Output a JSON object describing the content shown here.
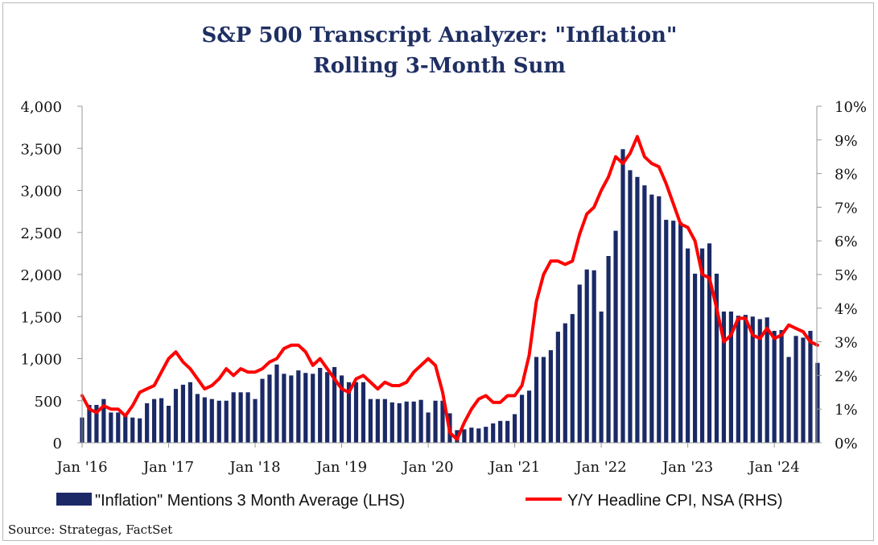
{
  "chart_data": {
    "type": "bar+line",
    "title_line1": "S&P 500 Transcript Analyzer: \"Inflation\"",
    "title_line2": "Rolling 3-Month Sum",
    "source": "Source: Strategas, FactSet",
    "colors": {
      "bars": "#1b2a66",
      "line": "#ff0000",
      "title": "#1f2f63"
    },
    "x_tick_labels": [
      "Jan '16",
      "Jan '17",
      "Jan '18",
      "Jan '19",
      "Jan '20",
      "Jan '21",
      "Jan '22",
      "Jan '23",
      "Jan '24"
    ],
    "left_axis": {
      "range": [
        0,
        4000
      ],
      "ticks": [
        "0",
        "500",
        "1,000",
        "1,500",
        "2,000",
        "2,500",
        "3,000",
        "3,500",
        "4,000"
      ]
    },
    "right_axis": {
      "range": [
        0,
        10
      ],
      "ticks": [
        "0%",
        "1%",
        "2%",
        "3%",
        "4%",
        "5%",
        "6%",
        "7%",
        "8%",
        "9%",
        "10%"
      ]
    },
    "start_month": "2016-01",
    "series": [
      {
        "name": "\"Inflation\" Mentions 3 Month Average (LHS)",
        "axis": "left",
        "kind": "bar",
        "values": [
          300,
          450,
          450,
          520,
          360,
          360,
          330,
          300,
          290,
          470,
          520,
          530,
          440,
          640,
          690,
          720,
          580,
          540,
          520,
          500,
          500,
          600,
          600,
          600,
          520,
          760,
          810,
          930,
          820,
          800,
          860,
          830,
          820,
          890,
          840,
          900,
          800,
          720,
          720,
          720,
          520,
          520,
          520,
          480,
          470,
          490,
          490,
          510,
          360,
          500,
          500,
          350,
          150,
          160,
          180,
          170,
          190,
          230,
          260,
          260,
          340,
          570,
          620,
          1020,
          1020,
          1100,
          1320,
          1420,
          1530,
          1880,
          2060,
          2050,
          1560,
          2220,
          2520,
          3490,
          3240,
          3160,
          3060,
          2950,
          2930,
          2650,
          2640,
          2620,
          2310,
          2010,
          2310,
          2370,
          2010,
          1560,
          1560,
          1510,
          1520,
          1500,
          1470,
          1490,
          1330,
          1340,
          1020,
          1270,
          1250,
          1330,
          950
        ]
      },
      {
        "name": "Y/Y Headline CPI, NSA (RHS)",
        "axis": "right",
        "kind": "line",
        "values": [
          1.4,
          1.0,
          0.9,
          1.1,
          1.0,
          1.0,
          0.8,
          1.1,
          1.5,
          1.6,
          1.7,
          2.1,
          2.5,
          2.7,
          2.4,
          2.2,
          1.9,
          1.6,
          1.7,
          1.9,
          2.2,
          2.0,
          2.2,
          2.1,
          2.1,
          2.2,
          2.4,
          2.5,
          2.8,
          2.9,
          2.9,
          2.7,
          2.3,
          2.5,
          2.2,
          1.9,
          1.6,
          1.5,
          1.9,
          2.0,
          1.8,
          1.6,
          1.8,
          1.7,
          1.7,
          1.8,
          2.1,
          2.3,
          2.5,
          2.3,
          1.5,
          0.3,
          0.1,
          0.6,
          1.0,
          1.3,
          1.4,
          1.2,
          1.2,
          1.4,
          1.4,
          1.7,
          2.6,
          4.2,
          5.0,
          5.4,
          5.4,
          5.3,
          5.4,
          6.2,
          6.8,
          7.0,
          7.5,
          7.9,
          8.5,
          8.3,
          8.6,
          9.1,
          8.5,
          8.3,
          8.2,
          7.7,
          7.1,
          6.5,
          6.4,
          6.0,
          5.0,
          4.9,
          4.0,
          3.0,
          3.2,
          3.7,
          3.7,
          3.2,
          3.1,
          3.4,
          3.1,
          3.2,
          3.5,
          3.4,
          3.3,
          3.0,
          2.9
        ]
      }
    ]
  }
}
